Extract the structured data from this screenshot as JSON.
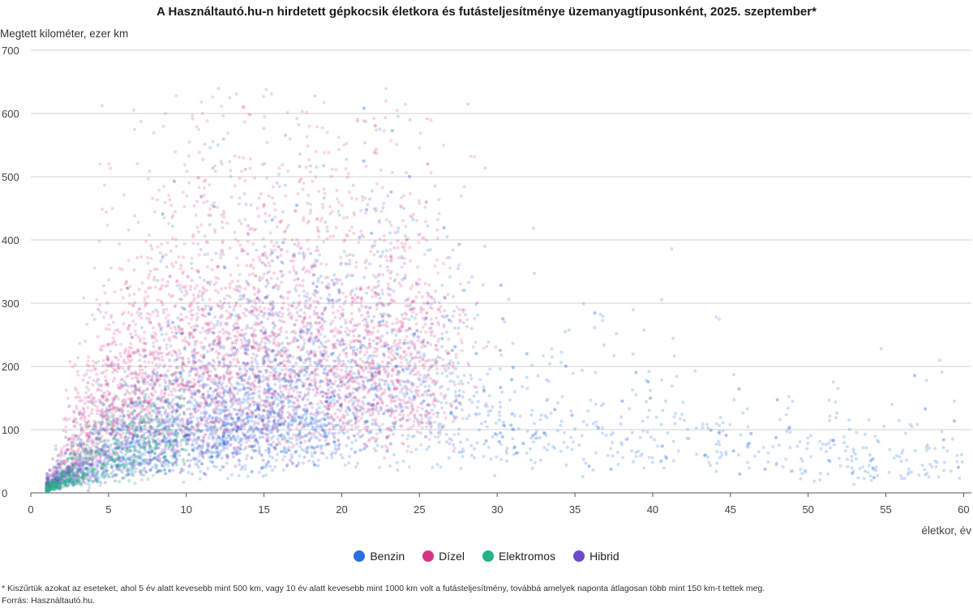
{
  "chart_data": {
    "type": "scatter",
    "title": "A Használtautó.hu-n hirdetett gépkocsik életkora és futásteljesítménye üzemanyagtípusonként, 2025. szeptember*",
    "xlabel": "életkor, év",
    "ylabel": "Megtett kilométer, ezer km",
    "xlim": [
      0,
      60.5
    ],
    "ylim": [
      0,
      700
    ],
    "xticks": [
      "0",
      "5",
      "10",
      "15",
      "20",
      "25",
      "30",
      "35",
      "40",
      "45",
      "50",
      "55",
      "60"
    ],
    "yticks": [
      "0",
      "100",
      "200",
      "300",
      "400",
      "500",
      "600",
      "700"
    ],
    "grid": "horizontal",
    "legend_position": "bottom",
    "series": [
      {
        "name": "Benzin",
        "color": "#2a6fe0",
        "approx_points": [
          [
            1,
            10
          ],
          [
            3,
            30
          ],
          [
            5,
            60
          ],
          [
            8,
            90
          ],
          [
            10,
            110
          ],
          [
            13,
            130
          ],
          [
            15,
            140
          ],
          [
            18,
            160
          ],
          [
            20,
            170
          ],
          [
            22,
            180
          ],
          [
            25,
            180
          ],
          [
            28,
            150
          ],
          [
            30,
            130
          ],
          [
            35,
            110
          ],
          [
            40,
            100
          ],
          [
            45,
            80
          ],
          [
            50,
            70
          ],
          [
            55,
            60
          ],
          [
            60,
            55
          ]
        ]
      },
      {
        "name": "Dízel",
        "color": "#d63384",
        "approx_points": [
          [
            1,
            15
          ],
          [
            3,
            80
          ],
          [
            5,
            150
          ],
          [
            8,
            200
          ],
          [
            10,
            220
          ],
          [
            13,
            240
          ],
          [
            15,
            250
          ],
          [
            18,
            250
          ],
          [
            20,
            240
          ],
          [
            22,
            230
          ],
          [
            25,
            220
          ],
          [
            28,
            230
          ],
          [
            30,
            240
          ]
        ]
      },
      {
        "name": "Elektromos",
        "color": "#26b38a",
        "approx_points": [
          [
            1,
            5
          ],
          [
            2,
            20
          ],
          [
            3,
            35
          ],
          [
            4,
            50
          ],
          [
            5,
            60
          ],
          [
            6,
            70
          ],
          [
            8,
            80
          ],
          [
            10,
            95
          ]
        ]
      },
      {
        "name": "Hibrid",
        "color": "#6a4bc9",
        "approx_points": [
          [
            1,
            10
          ],
          [
            3,
            40
          ],
          [
            5,
            70
          ],
          [
            8,
            100
          ],
          [
            10,
            120
          ],
          [
            13,
            140
          ],
          [
            15,
            150
          ],
          [
            18,
            155
          ],
          [
            20,
            160
          ]
        ]
      }
    ]
  },
  "footnote": "* Kiszűrtük azokat az eseteket, ahol 5 év alatt kevesebb mint 500 km, vagy 10 év alatt kevesebb mint 1000 km volt a futásteljesítmény, továbbá amelyek naponta átlagosan több mint 150 km-t tettek meg.",
  "source": "Forrás: Használtautó.hu."
}
